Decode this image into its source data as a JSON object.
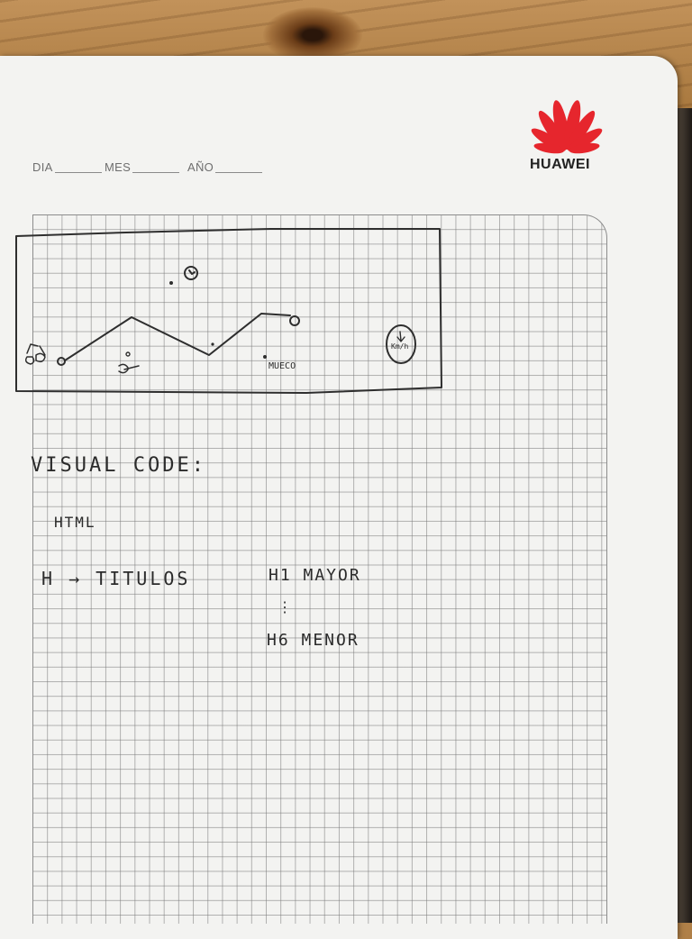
{
  "notebook": {
    "brand": "HUAWEI",
    "date_fields": [
      {
        "label": "DIA"
      },
      {
        "label": "MES"
      },
      {
        "label": "AÑO"
      }
    ]
  },
  "sketch": {
    "labels": {
      "hill_mark": "MUECO",
      "badge": "Km/h"
    }
  },
  "notes": {
    "heading": "VISUAL CODE:",
    "line1": "HTML",
    "line2": "H → TITULOS",
    "line3": "H1 MAYOR",
    "line4": "H6 MENOR"
  },
  "colors": {
    "logo_red": "#e6262d",
    "ink": "#2b2b2b",
    "paper": "#f3f3f1"
  }
}
